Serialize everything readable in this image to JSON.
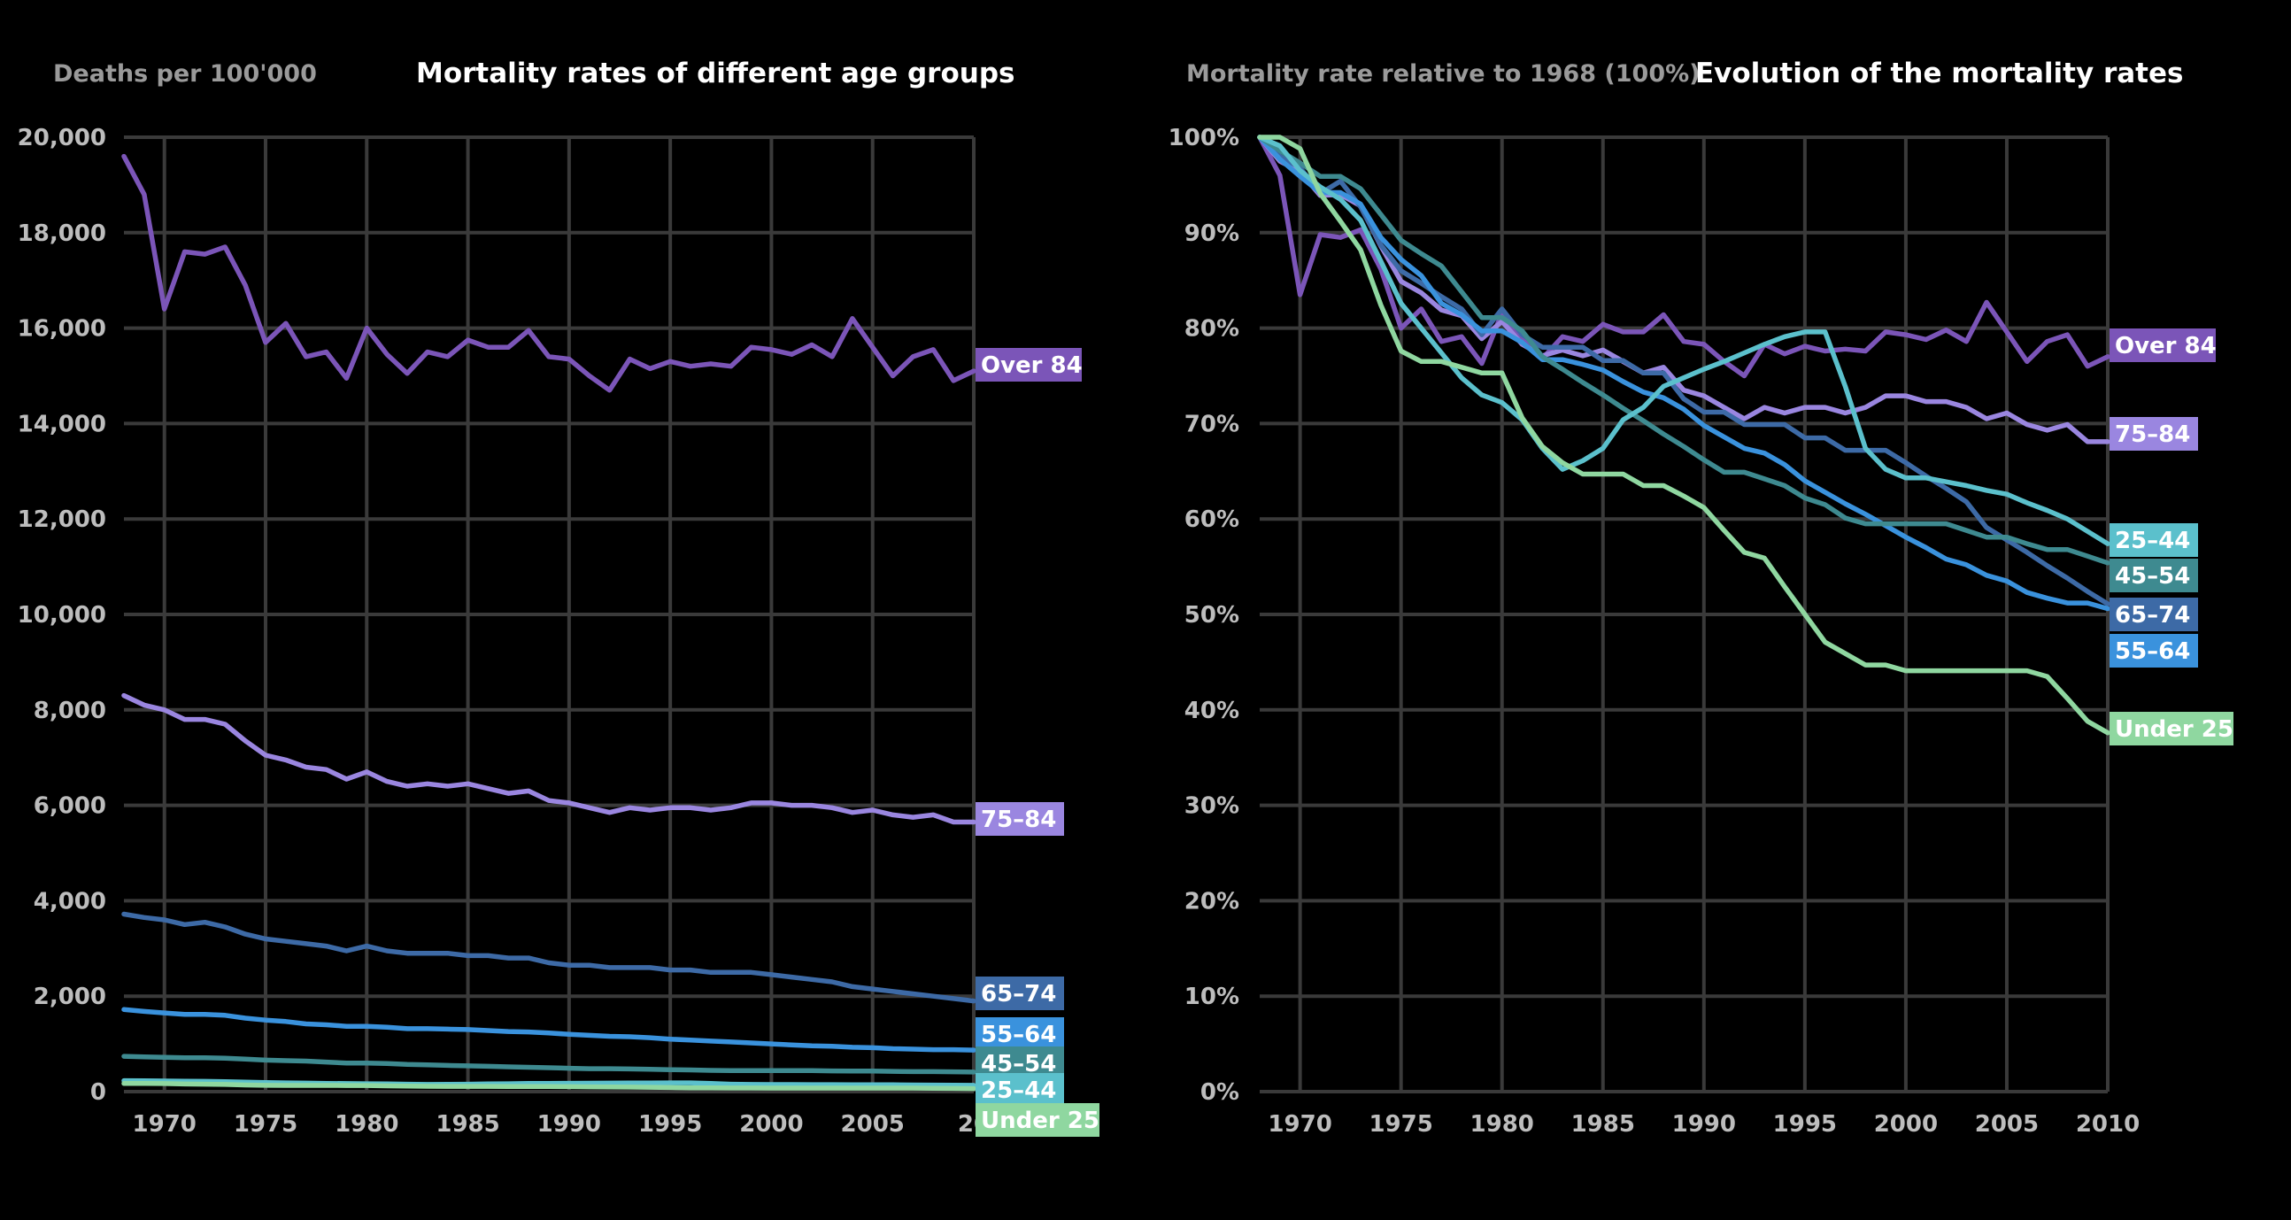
{
  "colors": {
    "background": "#000000",
    "grid": "#3a3a3a",
    "over84": "#7b55b8",
    "a75_84": "#9a86e0",
    "a65_74": "#3d6aa6",
    "a55_64": "#3a92dd",
    "a45_54": "#3e8a90",
    "a25_44": "#5bc0cc",
    "under25": "#8fd7a0"
  },
  "chart_data": [
    {
      "type": "line",
      "title": "Mortality rates of different age groups",
      "ylabel": "Deaths per 100'000",
      "xlabel": "",
      "xlim": [
        1968,
        2010
      ],
      "ylim": [
        0,
        20000
      ],
      "x_ticks": [
        "1970",
        "1975",
        "1980",
        "1985",
        "1990",
        "1995",
        "2000",
        "2005",
        "20"
      ],
      "y_ticks": [
        "0",
        "2,000",
        "4,000",
        "6,000",
        "8,000",
        "10,000",
        "12,000",
        "14,000",
        "16,000",
        "18,000",
        "20,000"
      ],
      "x_start": 1968,
      "series": [
        {
          "name": "Over 84",
          "color": "#7b55b8",
          "values": [
            19600,
            18800,
            16400,
            17600,
            17550,
            17700,
            16900,
            15700,
            16100,
            15400,
            15500,
            14950,
            16000,
            15450,
            15050,
            15500,
            15400,
            15750,
            15600,
            15600,
            15950,
            15400,
            15350,
            15000,
            14700,
            15350,
            15150,
            15300,
            15200,
            15250,
            15200,
            15600,
            15550,
            15450,
            15650,
            15400,
            16200,
            15600,
            15000,
            15400,
            15550,
            14900,
            15100
          ]
        },
        {
          "name": "75–84",
          "color": "#9a86e0",
          "values": [
            8300,
            8100,
            8000,
            7800,
            7800,
            7700,
            7350,
            7050,
            6950,
            6800,
            6750,
            6550,
            6700,
            6500,
            6400,
            6450,
            6400,
            6450,
            6350,
            6250,
            6300,
            6100,
            6050,
            5950,
            5850,
            5950,
            5900,
            5950,
            5950,
            5900,
            5950,
            6050,
            6050,
            6000,
            6000,
            5950,
            5850,
            5900,
            5800,
            5750,
            5800,
            5650,
            5650
          ]
        },
        {
          "name": "65–74",
          "color": "#3d6aa6",
          "values": [
            3720,
            3650,
            3600,
            3500,
            3550,
            3450,
            3300,
            3200,
            3150,
            3100,
            3050,
            2950,
            3050,
            2950,
            2900,
            2900,
            2900,
            2850,
            2850,
            2800,
            2800,
            2700,
            2650,
            2650,
            2600,
            2600,
            2600,
            2550,
            2550,
            2500,
            2500,
            2500,
            2450,
            2400,
            2350,
            2300,
            2200,
            2150,
            2100,
            2050,
            2000,
            1950,
            1900
          ]
        },
        {
          "name": "55–64",
          "color": "#3a92dd",
          "values": [
            1720,
            1680,
            1650,
            1620,
            1620,
            1600,
            1540,
            1500,
            1470,
            1420,
            1400,
            1370,
            1370,
            1350,
            1320,
            1320,
            1310,
            1300,
            1280,
            1260,
            1250,
            1230,
            1200,
            1180,
            1160,
            1150,
            1130,
            1100,
            1080,
            1060,
            1040,
            1020,
            1000,
            980,
            960,
            950,
            930,
            920,
            900,
            890,
            880,
            880,
            870
          ]
        },
        {
          "name": "45–54",
          "color": "#3e8a90",
          "values": [
            740,
            730,
            720,
            710,
            710,
            700,
            680,
            660,
            650,
            640,
            620,
            600,
            600,
            590,
            570,
            560,
            550,
            540,
            530,
            520,
            510,
            500,
            490,
            480,
            480,
            475,
            470,
            460,
            455,
            445,
            440,
            440,
            440,
            440,
            440,
            435,
            430,
            430,
            425,
            420,
            420,
            415,
            410
          ]
        },
        {
          "name": "25–44",
          "color": "#5bc0cc",
          "values": [
            230,
            228,
            222,
            218,
            215,
            210,
            200,
            190,
            184,
            178,
            172,
            168,
            166,
            162,
            155,
            150,
            152,
            155,
            162,
            165,
            170,
            172,
            174,
            176,
            178,
            180,
            182,
            183,
            183,
            170,
            155,
            150,
            148,
            148,
            147,
            146,
            145,
            144,
            142,
            140,
            138,
            135,
            132
          ]
        },
        {
          "name": "Under 25",
          "color": "#8fd7a0",
          "values": [
            170,
            170,
            168,
            160,
            155,
            150,
            140,
            132,
            130,
            130,
            129,
            128,
            128,
            120,
            115,
            112,
            110,
            110,
            110,
            108,
            108,
            106,
            104,
            100,
            96,
            95,
            90,
            85,
            80,
            78,
            76,
            76,
            75,
            75,
            75,
            75,
            75,
            75,
            75,
            74,
            70,
            66,
            64
          ]
        }
      ]
    },
    {
      "type": "line",
      "title": "Evolution of the mortality rates",
      "ylabel": "Mortality rate relative to 1968 (100%)",
      "xlabel": "",
      "xlim": [
        1968,
        2010
      ],
      "ylim": [
        0,
        100
      ],
      "x_ticks": [
        "1970",
        "1975",
        "1980",
        "1985",
        "1990",
        "1995",
        "2000",
        "2005",
        "2010"
      ],
      "y_ticks": [
        "0%",
        "10%",
        "20%",
        "30%",
        "40%",
        "50%",
        "60%",
        "70%",
        "80%",
        "90%",
        "100%"
      ],
      "x_start": 1968,
      "series": [
        {
          "name": "Over 84",
          "color": "#7b55b8",
          "values": [
            100,
            96,
            83.5,
            89.8,
            89.5,
            90.3,
            86.2,
            80,
            82,
            78.6,
            79.1,
            76.3,
            81.6,
            78.8,
            76.8,
            79.1,
            78.6,
            80.4,
            79.6,
            79.6,
            81.4,
            78.6,
            78.3,
            76.5,
            75,
            78.3,
            77.3,
            78.1,
            77.6,
            77.8,
            77.6,
            79.6,
            79.3,
            78.8,
            79.8,
            78.6,
            82.7,
            79.6,
            76.5,
            78.6,
            79.3,
            76,
            77
          ]
        },
        {
          "name": "75–84",
          "color": "#9a86e0",
          "values": [
            100,
            97.5,
            96.4,
            93.9,
            94,
            92.8,
            88.6,
            84.9,
            83.7,
            81.9,
            81.3,
            78.9,
            80.7,
            78.3,
            77.1,
            77.7,
            77.1,
            77.7,
            76.5,
            75.3,
            75.9,
            73.5,
            72.9,
            71.7,
            70.5,
            71.7,
            71.1,
            71.7,
            71.7,
            71.1,
            71.7,
            72.9,
            72.9,
            72.3,
            72.3,
            71.7,
            70.5,
            71.1,
            69.9,
            69.3,
            69.9,
            68.1,
            68.1
          ]
        },
        {
          "name": "65–74",
          "color": "#3d6aa6",
          "values": [
            100,
            98,
            96.8,
            94.1,
            95.4,
            92.7,
            88.7,
            86,
            84.7,
            83.3,
            82,
            79.3,
            82,
            79.3,
            78,
            78,
            78,
            76.6,
            76.6,
            75.3,
            75.3,
            72.6,
            71.2,
            71.2,
            69.9,
            69.9,
            69.9,
            68.5,
            68.5,
            67.2,
            67.2,
            67.2,
            65.9,
            64.5,
            63.2,
            61.8,
            59.1,
            57.8,
            56.5,
            55.1,
            53.8,
            52.4,
            51.1
          ]
        },
        {
          "name": "55–64",
          "color": "#3a92dd",
          "values": [
            100,
            97.7,
            95.9,
            94.2,
            94.2,
            93,
            89.5,
            87.2,
            85.5,
            82.6,
            81.4,
            79.7,
            79.7,
            78.5,
            76.7,
            76.7,
            76.2,
            75.6,
            74.4,
            73.3,
            72.7,
            71.5,
            69.8,
            68.6,
            67.4,
            66.9,
            65.7,
            64,
            62.8,
            61.6,
            60.5,
            59.3,
            58.1,
            57,
            55.8,
            55.2,
            54.1,
            53.5,
            52.3,
            51.7,
            51.2,
            51.2,
            50.6
          ]
        },
        {
          "name": "45–54",
          "color": "#3e8a90",
          "values": [
            100,
            98.6,
            97.3,
            95.9,
            95.9,
            94.6,
            91.9,
            89.2,
            87.8,
            86.5,
            83.8,
            81.1,
            81.1,
            79.7,
            77,
            75.7,
            74.3,
            73,
            71.6,
            70.3,
            68.9,
            67.6,
            66.2,
            64.9,
            64.9,
            64.2,
            63.5,
            62.2,
            61.5,
            60.1,
            59.5,
            59.5,
            59.5,
            59.5,
            59.5,
            58.8,
            58.1,
            58.1,
            57.4,
            56.8,
            56.8,
            56.1,
            55.4
          ]
        },
        {
          "name": "25–44",
          "color": "#5bc0cc",
          "values": [
            100,
            99.1,
            96.5,
            94.8,
            93.5,
            91.3,
            87,
            82.6,
            80,
            77.4,
            74.8,
            73,
            72.2,
            70.4,
            67.4,
            65.2,
            66.1,
            67.4,
            70.4,
            71.7,
            73.9,
            74.8,
            75.7,
            76.5,
            77.4,
            78.3,
            79.1,
            79.6,
            79.6,
            73.9,
            67.4,
            65.2,
            64.3,
            64.3,
            63.9,
            63.5,
            63,
            62.6,
            61.7,
            60.9,
            60,
            58.7,
            57.4
          ]
        },
        {
          "name": "Under 25",
          "color": "#8fd7a0",
          "values": [
            100,
            100,
            98.8,
            94.1,
            91.2,
            88.2,
            82.4,
            77.6,
            76.5,
            76.5,
            75.9,
            75.3,
            75.3,
            70.6,
            67.6,
            65.9,
            64.7,
            64.7,
            64.7,
            63.5,
            63.5,
            62.4,
            61.2,
            58.8,
            56.5,
            55.9,
            52.9,
            50,
            47.1,
            45.9,
            44.7,
            44.7,
            44.1,
            44.1,
            44.1,
            44.1,
            44.1,
            44.1,
            44.1,
            43.5,
            41.2,
            38.8,
            37.6
          ]
        }
      ]
    }
  ],
  "labels_left": [
    "Over 84",
    "75–84",
    "65–74",
    "55–64",
    "45–54",
    "25–44",
    "Under 25"
  ],
  "labels_right": [
    "Over 84",
    "75–84",
    "25–44",
    "45–54",
    "65–74",
    "55–64",
    "Under 25"
  ]
}
